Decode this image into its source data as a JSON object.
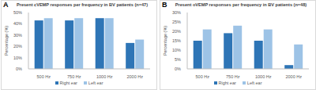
{
  "chart_data": [
    {
      "type": "bar",
      "annotations": [
        "A"
      ],
      "title": "Present cVEMP responses per frequency in BV patients (n=47)",
      "y_label": "Percentage (%)",
      "categories": [
        "500 Hz",
        "750 Hz",
        "1000 Hz",
        "2000 Hz"
      ],
      "series": [
        {
          "name": "Right ear",
          "color": "#2e75b6",
          "values": [
            43,
            43,
            45,
            23
          ]
        },
        {
          "name": "Left ear",
          "color": "#9dc3e6",
          "values": [
            45,
            45,
            45,
            26
          ]
        }
      ],
      "ylim": [
        0,
        50
      ],
      "yticks": [
        {
          "value": 0,
          "label": "0%"
        },
        {
          "value": 10,
          "label": "10%"
        },
        {
          "value": 20,
          "label": "20%"
        },
        {
          "value": 30,
          "label": "30%"
        },
        {
          "value": 40,
          "label": "40%"
        },
        {
          "value": 50,
          "label": "50%"
        }
      ],
      "grid": false,
      "legend": "bottom"
    },
    {
      "type": "bar",
      "annotations": [
        "B"
      ],
      "title": "Present oVEMP responses per frequency in BV patients (n=48)",
      "y_label": "Percentage (%)",
      "categories": [
        "500 Hz",
        "750 Hz",
        "1000 Hz",
        "2000 Hz"
      ],
      "series": [
        {
          "name": "Right ear",
          "color": "#2e75b6",
          "values": [
            15,
            19,
            15,
            2
          ]
        },
        {
          "name": "Left ear",
          "color": "#9dc3e6",
          "values": [
            21,
            23,
            21,
            13
          ]
        }
      ],
      "ylim": [
        0,
        30
      ],
      "yticks": [
        {
          "value": 0,
          "label": "0%"
        },
        {
          "value": 5,
          "label": "5%"
        },
        {
          "value": 10,
          "label": "10%"
        },
        {
          "value": 15,
          "label": "15%"
        },
        {
          "value": 20,
          "label": "20%"
        },
        {
          "value": 25,
          "label": "25%"
        },
        {
          "value": 30,
          "label": "30%"
        }
      ],
      "grid": false,
      "legend": "bottom"
    }
  ]
}
